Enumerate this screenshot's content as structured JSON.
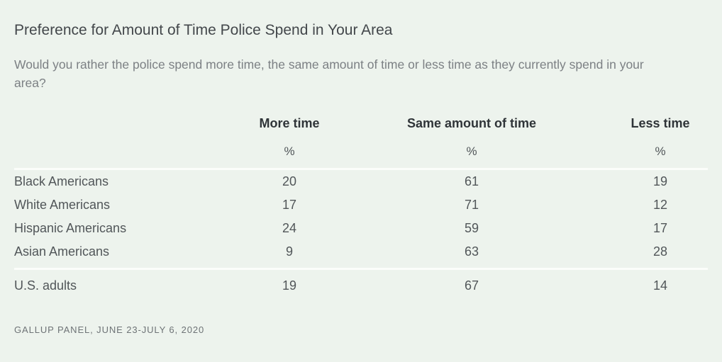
{
  "page": {
    "title": "Preference for Amount of Time Police Spend in Your Area",
    "subtitle": "Would you rather the police spend more time, the same amount of time or less time as they currently spend in your area?",
    "source": "GALLUP PANEL, JUNE 23-JULY 6, 2020"
  },
  "table": {
    "columns": [
      "More time",
      "Same amount of time",
      "Less time"
    ],
    "unit": "%",
    "rows": [
      {
        "label": "Black Americans",
        "values": [
          "20",
          "61",
          "19"
        ]
      },
      {
        "label": "White Americans",
        "values": [
          "17",
          "71",
          "12"
        ]
      },
      {
        "label": "Hispanic Americans",
        "values": [
          "24",
          "59",
          "17"
        ]
      },
      {
        "label": "Asian Americans",
        "values": [
          "9",
          "63",
          "28"
        ]
      }
    ],
    "summary_row": {
      "label": "U.S. adults",
      "values": [
        "19",
        "67",
        "14"
      ]
    }
  },
  "colors": {
    "background": "#edf3ed",
    "title_text": "#43474b",
    "subtitle_text": "#7c8084",
    "header_text": "#2f3438",
    "body_text": "#515659",
    "source_text": "#6e7376",
    "divider": "#fbfdfa"
  },
  "chart_data": {
    "type": "table",
    "title": "Preference for Amount of Time Police Spend in Your Area",
    "subtitle": "Would you rather the police spend more time, the same amount of time or less time as they currently spend in your area?",
    "unit": "%",
    "categories": [
      "Black Americans",
      "White Americans",
      "Hispanic Americans",
      "Asian Americans",
      "U.S. adults"
    ],
    "series": [
      {
        "name": "More time",
        "values": [
          20,
          17,
          24,
          9,
          19
        ]
      },
      {
        "name": "Same amount of time",
        "values": [
          61,
          71,
          59,
          63,
          67
        ]
      },
      {
        "name": "Less time",
        "values": [
          19,
          12,
          17,
          28,
          14
        ]
      }
    ],
    "source": "GALLUP PANEL, JUNE 23-JULY 6, 2020"
  }
}
